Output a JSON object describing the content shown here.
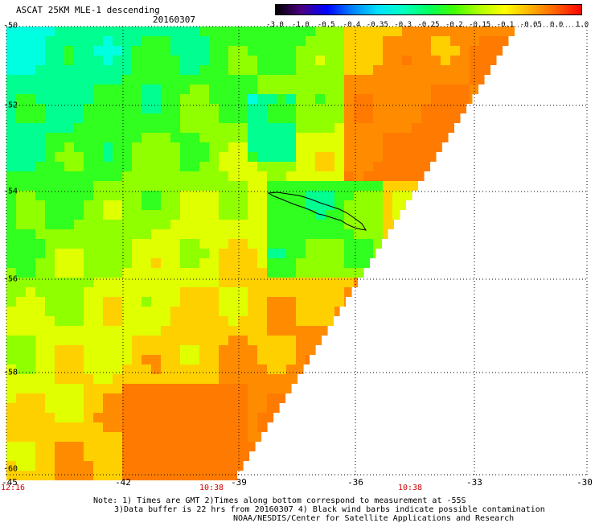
{
  "header": {
    "title": "ASCAT 25KM MLE-1 descending",
    "date": "20160307"
  },
  "colorbar": {
    "labels": [
      "-3.0",
      "-1.0",
      "-0.5",
      "-0.4",
      "-0.35",
      "-0.3",
      "-0.25",
      "-0.2",
      "-0.15",
      "-0.1",
      "-0.05",
      "0.0",
      "1.0"
    ],
    "colors": [
      "#000000",
      "#4b0082",
      "#0000ff",
      "#0080ff",
      "#00e0ff",
      "#00ffc0",
      "#00ff60",
      "#40ff00",
      "#b0ff00",
      "#ffff00",
      "#ffb000",
      "#ff6000",
      "#ff0000"
    ]
  },
  "axes": {
    "lat_labels": [
      "-50",
      "-52",
      "-54",
      "-56",
      "-58",
      "-60"
    ],
    "lon_labels": [
      "-45",
      "-42",
      "-39",
      "-36",
      "-33",
      "-30"
    ]
  },
  "times": [
    "12:16",
    "10:38",
    "10:38"
  ],
  "notes": [
    "Note: 1) Times are GMT 2)Times along bottom correspond to measurement at -55S",
    "3)Data buffer is 22 hrs from 20160307 4) Black wind barbs indicate possible contamination",
    "NOAA/NESDIS/Center for Satellite Applications and Research"
  ]
}
